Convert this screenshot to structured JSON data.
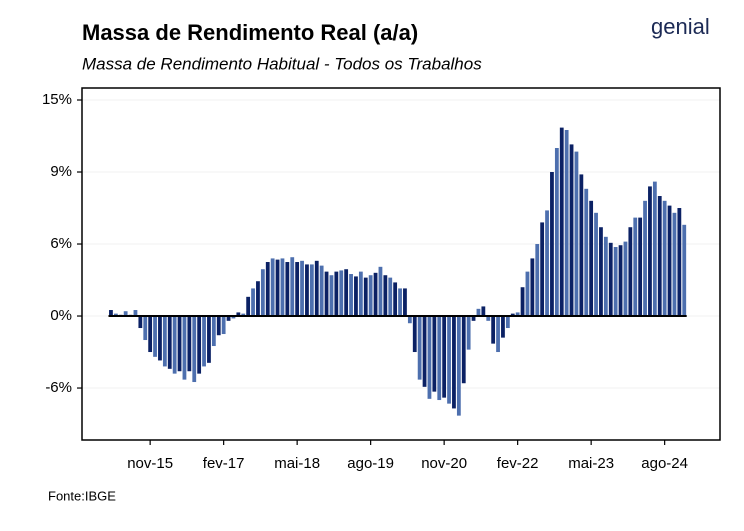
{
  "chart_data": {
    "type": "bar",
    "title": "Massa de Rendimento Real (a/a)",
    "subtitle": "Massa de Rendimento Habitual - Todos os Trabalhos",
    "source": "Fonte:IBGE",
    "logo": "genial",
    "categories": [
      null,
      null,
      null,
      null,
      null,
      null,
      null,
      null,
      "nov-15",
      null,
      null,
      null,
      null,
      null,
      null,
      null,
      null,
      null,
      null,
      null,
      null,
      null,
      null,
      "fev-17",
      null,
      null,
      null,
      null,
      null,
      null,
      null,
      null,
      null,
      null,
      null,
      null,
      null,
      null,
      "mai-18",
      null,
      null,
      null,
      null,
      null,
      null,
      null,
      null,
      null,
      null,
      null,
      null,
      null,
      null,
      "ago-19",
      null,
      null,
      null,
      null,
      null,
      null,
      null,
      null,
      null,
      null,
      null,
      null,
      null,
      null,
      "nov-20",
      null,
      null,
      null,
      null,
      null,
      null,
      null,
      null,
      null,
      null,
      null,
      null,
      null,
      null,
      "fev-22",
      null,
      null,
      null,
      null,
      null,
      null,
      null,
      null,
      null,
      null,
      null,
      null,
      null,
      null,
      "mai-23",
      null,
      null,
      null,
      null,
      null,
      null,
      null,
      null,
      null,
      null,
      null,
      null,
      null,
      null,
      "ago-24",
      null,
      null,
      null,
      null
    ],
    "values": [
      0.5,
      0.2,
      0.1,
      0.4,
      0.1,
      0.5,
      -1.0,
      -2.0,
      -3.0,
      -3.4,
      -3.7,
      -4.2,
      -4.4,
      -4.8,
      -4.6,
      -5.3,
      -4.6,
      -5.5,
      -4.8,
      -4.2,
      -3.9,
      -2.5,
      -1.6,
      -1.5,
      -0.4,
      -0.2,
      0.3,
      0.2,
      1.6,
      2.3,
      2.9,
      3.9,
      4.5,
      4.8,
      4.7,
      4.8,
      4.5,
      4.9,
      4.5,
      4.6,
      4.3,
      4.3,
      4.6,
      4.2,
      3.7,
      3.4,
      3.7,
      3.8,
      3.9,
      3.5,
      3.3,
      3.7,
      3.2,
      3.4,
      3.6,
      4.1,
      3.4,
      3.2,
      2.8,
      2.3,
      2.3,
      -0.6,
      -3.0,
      -5.3,
      -5.9,
      -6.9,
      -6.3,
      -7.0,
      -6.8,
      -7.3,
      -7.7,
      -8.3,
      -5.6,
      -2.8,
      -0.4,
      0.6,
      0.8,
      -0.4,
      -2.3,
      -3.0,
      -1.8,
      -1.0,
      0.2,
      0.3,
      2.4,
      3.7,
      4.8,
      6.0,
      6.9,
      7.4,
      9.0,
      11.0,
      12.7,
      12.5,
      11.3,
      10.7,
      8.9,
      8.3,
      7.8,
      7.3,
      6.7,
      6.3,
      6.05,
      5.75,
      5.9,
      6.1,
      6.7,
      7.1,
      7.1,
      7.8,
      8.4,
      8.6,
      8.0,
      7.8,
      7.6,
      7.3,
      7.5,
      6.8
    ],
    "colors": [
      "#0b2164",
      "#4d6fae"
    ],
    "ylim": [
      -10.33,
      16
    ],
    "yticks": [
      {
        "value": 15,
        "label": "15%"
      },
      {
        "value": 9,
        "label": "9%"
      },
      {
        "value": 6,
        "label": "6%"
      },
      {
        "value": 0,
        "label": "0%"
      },
      {
        "value": -6,
        "label": "-6%"
      }
    ],
    "grid": true
  }
}
